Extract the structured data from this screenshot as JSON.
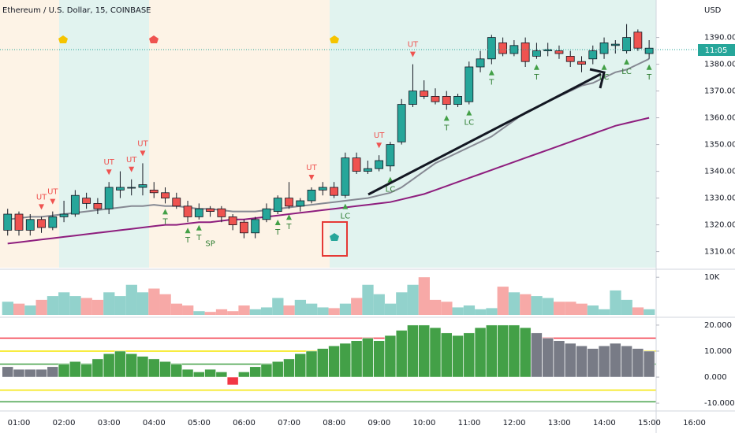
{
  "chart_data": {
    "type": "candlestick",
    "title": "Ethereum / U.S. Dollar, 15, COINBASE",
    "currency": "USD",
    "price_tag": "11:05",
    "up_color": "#26a69a",
    "down_color": "#ef5350",
    "vol_up_color": "#92d2cc",
    "vol_down_color": "#f7a9a7",
    "ohlc": [
      [
        1318,
        1326,
        1316,
        1324
      ],
      [
        1324,
        1325,
        1316,
        1318
      ],
      [
        1318,
        1324,
        1316,
        1322
      ],
      [
        1322,
        1323,
        1317,
        1319
      ],
      [
        1319,
        1325,
        1318,
        1323
      ],
      [
        1323,
        1329,
        1321,
        1324
      ],
      [
        1324,
        1333,
        1323,
        1331
      ],
      [
        1330,
        1332,
        1326,
        1328
      ],
      [
        1328,
        1330,
        1324,
        1326
      ],
      [
        1326,
        1336,
        1324,
        1334
      ],
      [
        1333,
        1340,
        1330,
        1334
      ],
      [
        1334,
        1337,
        1331,
        1334
      ],
      [
        1334,
        1343,
        1331,
        1335
      ],
      [
        1333,
        1336,
        1330,
        1332
      ],
      [
        1332,
        1334,
        1328,
        1330
      ],
      [
        1330,
        1332,
        1326,
        1327
      ],
      [
        1327,
        1329,
        1321,
        1323
      ],
      [
        1323,
        1328,
        1322,
        1326
      ],
      [
        1326,
        1327,
        1323,
        1325
      ],
      [
        1326,
        1327,
        1321,
        1323
      ],
      [
        1323,
        1324,
        1318,
        1320
      ],
      [
        1321,
        1322,
        1315,
        1317
      ],
      [
        1317,
        1323,
        1315,
        1322
      ],
      [
        1322,
        1328,
        1321,
        1326
      ],
      [
        1325,
        1331,
        1324,
        1330
      ],
      [
        1330,
        1336,
        1326,
        1327
      ],
      [
        1327,
        1330,
        1325,
        1329
      ],
      [
        1329,
        1334,
        1328,
        1333
      ],
      [
        1333,
        1336,
        1331,
        1334
      ],
      [
        1334,
        1336,
        1330,
        1331
      ],
      [
        1331,
        1347,
        1330,
        1345
      ],
      [
        1345,
        1347,
        1339,
        1340
      ],
      [
        1340,
        1344,
        1339,
        1341
      ],
      [
        1341,
        1346,
        1340,
        1344
      ],
      [
        1342,
        1351,
        1340,
        1350
      ],
      [
        1351,
        1367,
        1350,
        1365
      ],
      [
        1365,
        1380,
        1364,
        1370
      ],
      [
        1370,
        1374,
        1367,
        1368
      ],
      [
        1368,
        1371,
        1365,
        1366
      ],
      [
        1368,
        1370,
        1363,
        1365
      ],
      [
        1365,
        1369,
        1364,
        1368
      ],
      [
        1366,
        1381,
        1365,
        1379
      ],
      [
        1379,
        1385,
        1377,
        1382
      ],
      [
        1382,
        1391,
        1380,
        1390
      ],
      [
        1388,
        1390,
        1383,
        1384
      ],
      [
        1384,
        1389,
        1383,
        1387
      ],
      [
        1388,
        1390,
        1379,
        1381
      ],
      [
        1383,
        1388,
        1382,
        1385
      ],
      [
        1385,
        1388,
        1383,
        1385.5
      ],
      [
        1385,
        1387,
        1382,
        1384
      ],
      [
        1383,
        1385,
        1379,
        1381
      ],
      [
        1381,
        1383,
        1377,
        1380
      ],
      [
        1382,
        1387,
        1380,
        1385
      ],
      [
        1384,
        1390,
        1382,
        1388
      ],
      [
        1387,
        1389,
        1384,
        1387.5
      ],
      [
        1385,
        1395,
        1384,
        1390
      ],
      [
        1392,
        1393,
        1385,
        1386
      ],
      [
        1384,
        1389,
        1382,
        1386
      ]
    ],
    "lines": [
      {
        "color": "#868993",
        "values": [
          1322,
          1322.5,
          1323,
          1323,
          1323.5,
          1324,
          1324.5,
          1325,
          1325.5,
          1326,
          1326.5,
          1327,
          1327,
          1327.5,
          1327,
          1327,
          1326.5,
          1326,
          1326,
          1325.5,
          1325,
          1325,
          1325,
          1325.5,
          1326,
          1326.5,
          1327,
          1327.5,
          1328,
          1328.5,
          1329,
          1329.5,
          1330,
          1331,
          1332,
          1334,
          1337,
          1340,
          1343,
          1345,
          1347,
          1349,
          1351,
          1353,
          1356,
          1359,
          1362,
          1364,
          1366,
          1368,
          1370,
          1372,
          1373,
          1375,
          1377,
          1378,
          1380,
          1382
        ]
      },
      {
        "color": "#8e1e7e",
        "values": [
          1313,
          1313.5,
          1314,
          1314.5,
          1315,
          1315.5,
          1316,
          1316.5,
          1317,
          1317.5,
          1318,
          1318.5,
          1319,
          1319.5,
          1320,
          1320,
          1320.5,
          1321,
          1321,
          1321.5,
          1322,
          1322,
          1322.5,
          1323,
          1323.5,
          1324,
          1324.5,
          1325,
          1325.5,
          1326,
          1326.5,
          1327,
          1327.5,
          1328,
          1328.5,
          1329.5,
          1330.5,
          1331.5,
          1333,
          1334.5,
          1336,
          1337.5,
          1339,
          1340.5,
          1342,
          1343.5,
          1345,
          1346.5,
          1348,
          1349.5,
          1351,
          1352.5,
          1354,
          1355.5,
          1357,
          1358,
          1359,
          1360
        ]
      }
    ],
    "ylim": [
      1304,
      1404
    ],
    "yticks": [
      {
        "value": 1310,
        "label": "1310.00"
      },
      {
        "value": 1320,
        "label": "1320.00"
      },
      {
        "value": 1330,
        "label": "1330.00"
      },
      {
        "value": 1340,
        "label": "1340.00"
      },
      {
        "value": 1350,
        "label": "1350.00"
      },
      {
        "value": 1360,
        "label": "1360.00"
      },
      {
        "value": 1370,
        "label": "1370.00"
      },
      {
        "value": 1380,
        "label": "1380.00"
      },
      {
        "value": 1390,
        "label": "1390.00"
      }
    ],
    "signals": [
      "UT",
      "UT",
      "UT",
      "UT",
      "UT",
      "UT",
      "UT",
      "UT",
      "T",
      "T",
      "T",
      "SP",
      "T",
      "T",
      "LC",
      "LC",
      "T",
      "LC",
      "T",
      "T",
      "LC",
      "LC",
      "T"
    ],
    "volume": [
      3500,
      3000,
      2500,
      4000,
      5000,
      6000,
      5000,
      4500,
      4000,
      6000,
      5000,
      8000,
      6000,
      7000,
      5500,
      3000,
      2500,
      1000,
      800,
      1500,
      1000,
      2500,
      1500,
      2000,
      4500,
      2500,
      4000,
      3000,
      2000,
      1800,
      3000,
      4500,
      8000,
      5500,
      3000,
      6000,
      8000,
      10000,
      4000,
      3500,
      2000,
      2500,
      1500,
      1800,
      7500,
      6000,
      5500,
      5000,
      4500,
      3500,
      3500,
      3000,
      2500,
      1500,
      6500,
      4000,
      2000,
      1500
    ],
    "vlim": [
      0,
      11500
    ],
    "vticks": [
      {
        "value": 10000,
        "label": "10K"
      }
    ],
    "indicator": [
      4,
      3,
      3,
      3,
      4,
      5,
      6,
      5,
      7,
      9,
      10,
      9,
      8,
      7,
      6,
      5,
      3,
      2,
      3,
      2,
      -3,
      2,
      4,
      5,
      6,
      7,
      9,
      10,
      11,
      12,
      13,
      14,
      15,
      14,
      16,
      18,
      20,
      20,
      19,
      17,
      16,
      17,
      19,
      20,
      20,
      20,
      19,
      17,
      15,
      14,
      13,
      12,
      11,
      12,
      13,
      12,
      11,
      10
    ],
    "indicator_colors": [
      "#787b86",
      "#787b86",
      "#787b86",
      "#787b86",
      "#787b86",
      "#43a047",
      "#43a047",
      "#43a047",
      "#43a047",
      "#43a047",
      "#43a047",
      "#43a047",
      "#43a047",
      "#43a047",
      "#43a047",
      "#43a047",
      "#43a047",
      "#43a047",
      "#43a047",
      "#43a047",
      "#f23645",
      "#43a047",
      "#43a047",
      "#43a047",
      "#43a047",
      "#43a047",
      "#43a047",
      "#43a047",
      "#43a047",
      "#43a047",
      "#43a047",
      "#43a047",
      "#43a047",
      "#43a047",
      "#43a047",
      "#43a047",
      "#43a047",
      "#43a047",
      "#43a047",
      "#43a047",
      "#43a047",
      "#43a047",
      "#43a047",
      "#43a047",
      "#43a047",
      "#43a047",
      "#43a047",
      "#787b86",
      "#787b86",
      "#787b86",
      "#787b86",
      "#787b86",
      "#787b86",
      "#787b86",
      "#787b86",
      "#787b86",
      "#787b86",
      "#787b86"
    ],
    "ilim": [
      -12.4,
      22.4
    ],
    "iticks": [
      {
        "value": 20,
        "label": "20.000"
      },
      {
        "value": 10,
        "label": "10.000"
      },
      {
        "value": 0,
        "label": "0.000"
      },
      {
        "value": -10,
        "label": "-10.000"
      }
    ],
    "levels": [
      {
        "value": 15,
        "color": "#f23645"
      },
      {
        "value": 10,
        "color": "#f5e600"
      },
      {
        "value": 5,
        "color": "#43a047"
      },
      {
        "value": -5,
        "color": "#f5e600"
      },
      {
        "value": -9.5,
        "color": "#43a047"
      }
    ],
    "xticks": [
      "01:00",
      "02:00",
      "03:00",
      "04:00",
      "05:00",
      "06:00",
      "07:00",
      "08:00",
      "09:00",
      "10:00",
      "11:00",
      "12:00",
      "13:00",
      "14:00",
      "15:00",
      "16:00"
    ]
  }
}
